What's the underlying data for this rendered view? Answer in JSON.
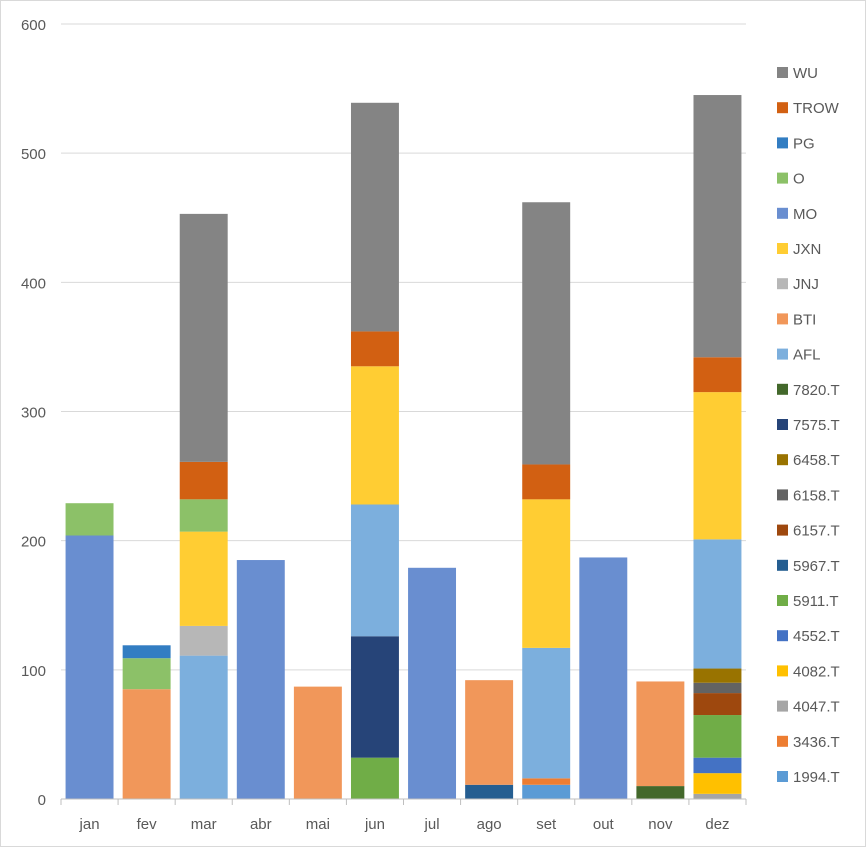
{
  "chart_data": {
    "type": "bar",
    "stacked": true,
    "title": "",
    "xlabel": "",
    "ylabel": "",
    "ylim": [
      0,
      600
    ],
    "yticks": [
      0,
      100,
      200,
      300,
      400,
      500,
      600
    ],
    "grid": true,
    "legend": "right",
    "categories": [
      "jan",
      "fev",
      "mar",
      "abr",
      "mai",
      "jun",
      "jul",
      "ago",
      "set",
      "out",
      "nov",
      "dez"
    ],
    "series": [
      {
        "name": "1994.T",
        "color": "#5B9BD5",
        "values": [
          0,
          0,
          0,
          0,
          0,
          0,
          0,
          0,
          11,
          0,
          0,
          0
        ]
      },
      {
        "name": "3436.T",
        "color": "#ED7D31",
        "values": [
          0,
          0,
          0,
          0,
          0,
          0,
          0,
          0,
          5,
          0,
          0,
          0
        ]
      },
      {
        "name": "4047.T",
        "color": "#A5A5A5",
        "values": [
          0,
          0,
          0,
          0,
          0,
          0,
          0,
          0,
          0,
          0,
          0,
          4
        ]
      },
      {
        "name": "4082.T",
        "color": "#FFC000",
        "values": [
          0,
          0,
          0,
          0,
          0,
          0,
          0,
          0,
          0,
          0,
          0,
          16
        ]
      },
      {
        "name": "4552.T",
        "color": "#4472C4",
        "values": [
          0,
          0,
          0,
          0,
          0,
          0,
          0,
          0,
          0,
          0,
          0,
          12
        ]
      },
      {
        "name": "5911.T",
        "color": "#70AD47",
        "values": [
          0,
          0,
          0,
          0,
          0,
          32,
          0,
          0,
          0,
          0,
          0,
          33
        ]
      },
      {
        "name": "5967.T",
        "color": "#255E91",
        "values": [
          0,
          0,
          0,
          0,
          0,
          0,
          0,
          11,
          0,
          0,
          0,
          0
        ]
      },
      {
        "name": "6157.T",
        "color": "#9E480E",
        "values": [
          0,
          0,
          0,
          0,
          0,
          0,
          0,
          0,
          0,
          0,
          0,
          17
        ]
      },
      {
        "name": "6158.T",
        "color": "#636363",
        "values": [
          0,
          0,
          0,
          0,
          0,
          0,
          0,
          0,
          0,
          0,
          0,
          8
        ]
      },
      {
        "name": "6458.T",
        "color": "#997300",
        "values": [
          0,
          0,
          0,
          0,
          0,
          0,
          0,
          0,
          0,
          0,
          0,
          11
        ]
      },
      {
        "name": "7575.T",
        "color": "#264478",
        "values": [
          0,
          0,
          0,
          0,
          0,
          94,
          0,
          0,
          0,
          0,
          0,
          0
        ]
      },
      {
        "name": "7820.T",
        "color": "#43682B",
        "values": [
          0,
          0,
          0,
          0,
          0,
          0,
          0,
          0,
          0,
          0,
          10,
          0
        ]
      },
      {
        "name": "AFL",
        "color": "#7CAFDD",
        "values": [
          0,
          0,
          111,
          0,
          0,
          102,
          0,
          0,
          101,
          0,
          0,
          100
        ]
      },
      {
        "name": "BTI",
        "color": "#F1975A",
        "values": [
          0,
          85,
          0,
          0,
          87,
          0,
          0,
          81,
          0,
          0,
          81,
          0
        ]
      },
      {
        "name": "JNJ",
        "color": "#B7B7B7",
        "values": [
          0,
          0,
          23,
          0,
          0,
          0,
          0,
          0,
          0,
          0,
          0,
          0
        ]
      },
      {
        "name": "JXN",
        "color": "#FFCD33",
        "values": [
          0,
          0,
          73,
          0,
          0,
          107,
          0,
          0,
          115,
          0,
          0,
          114
        ]
      },
      {
        "name": "MO",
        "color": "#698ED0",
        "values": [
          204,
          0,
          0,
          185,
          0,
          0,
          179,
          0,
          0,
          187,
          0,
          0
        ]
      },
      {
        "name": "O",
        "color": "#8CC168",
        "values": [
          25,
          24,
          25,
          0,
          0,
          0,
          0,
          0,
          0,
          0,
          0,
          0
        ]
      },
      {
        "name": "PG",
        "color": "#327DC2",
        "values": [
          0,
          10,
          0,
          0,
          0,
          0,
          0,
          0,
          0,
          0,
          0,
          0
        ]
      },
      {
        "name": "TROW",
        "color": "#D26012",
        "values": [
          0,
          0,
          29,
          0,
          0,
          27,
          0,
          0,
          27,
          0,
          0,
          27
        ]
      },
      {
        "name": "WU",
        "color": "#848484",
        "values": [
          0,
          0,
          192,
          0,
          0,
          177,
          0,
          0,
          203,
          0,
          0,
          203
        ]
      }
    ]
  }
}
